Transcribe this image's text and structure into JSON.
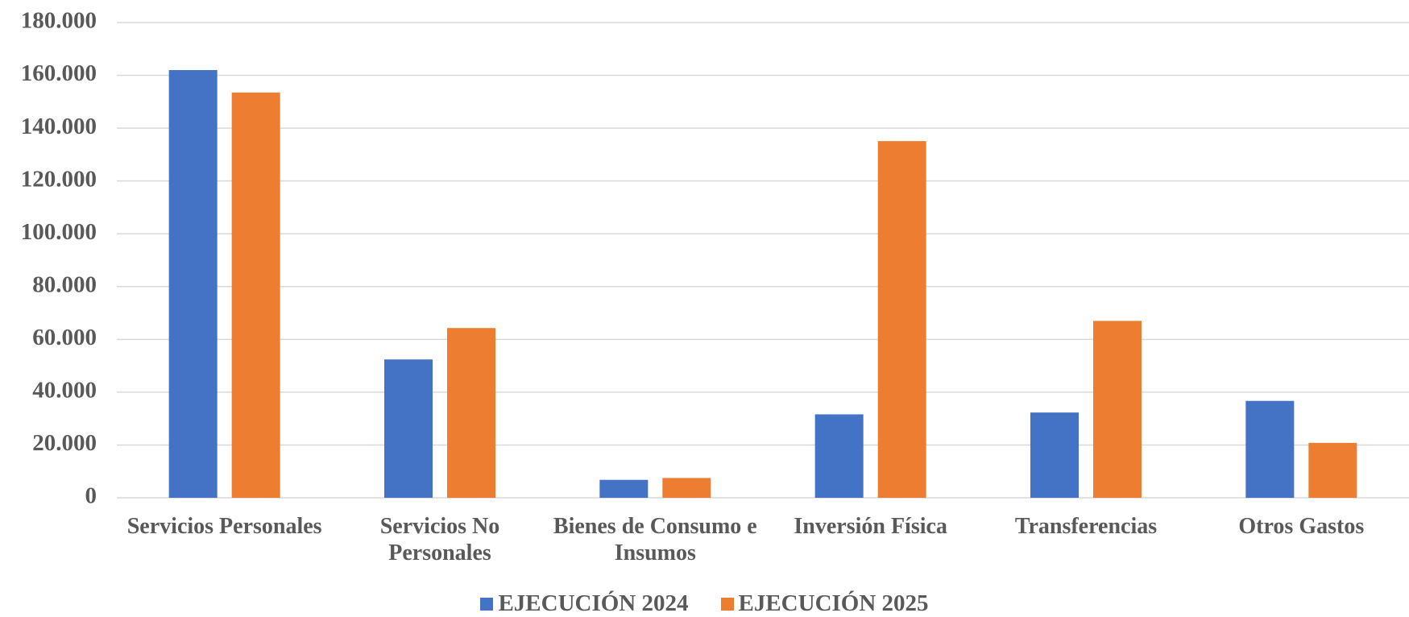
{
  "chart_data": {
    "type": "bar",
    "categories": [
      "Servicios Personales",
      "Servicios No Personales",
      "Bienes de Consumo e Insumos",
      "Inversión Física",
      "Transferencias",
      "Otros Gastos"
    ],
    "series": [
      {
        "name": "EJECUCIÓN 2024",
        "color": "#4472c4",
        "values": [
          162000,
          52400,
          6800,
          31600,
          32300,
          36700
        ]
      },
      {
        "name": "EJECUCIÓN 2025",
        "color": "#ed7d31",
        "values": [
          153500,
          64300,
          7500,
          135100,
          67000,
          20800
        ]
      }
    ],
    "ylim": [
      0,
      180000
    ],
    "yticks": [
      0,
      {
        "value": 20000,
        "label": "20.000"
      },
      {
        "value": 40000,
        "label": "40.000"
      },
      {
        "value": 60000,
        "label": "60.000"
      },
      {
        "value": 80000,
        "label": "80.000"
      },
      {
        "value": 100000,
        "label": "100.000"
      },
      {
        "value": 120000,
        "label": "120.000"
      },
      {
        "value": 140000,
        "label": "140.000"
      },
      {
        "value": 160000,
        "label": "160.000"
      },
      {
        "value": 180000,
        "label": "180.000"
      }
    ],
    "grid": true,
    "legend": "bottom"
  }
}
